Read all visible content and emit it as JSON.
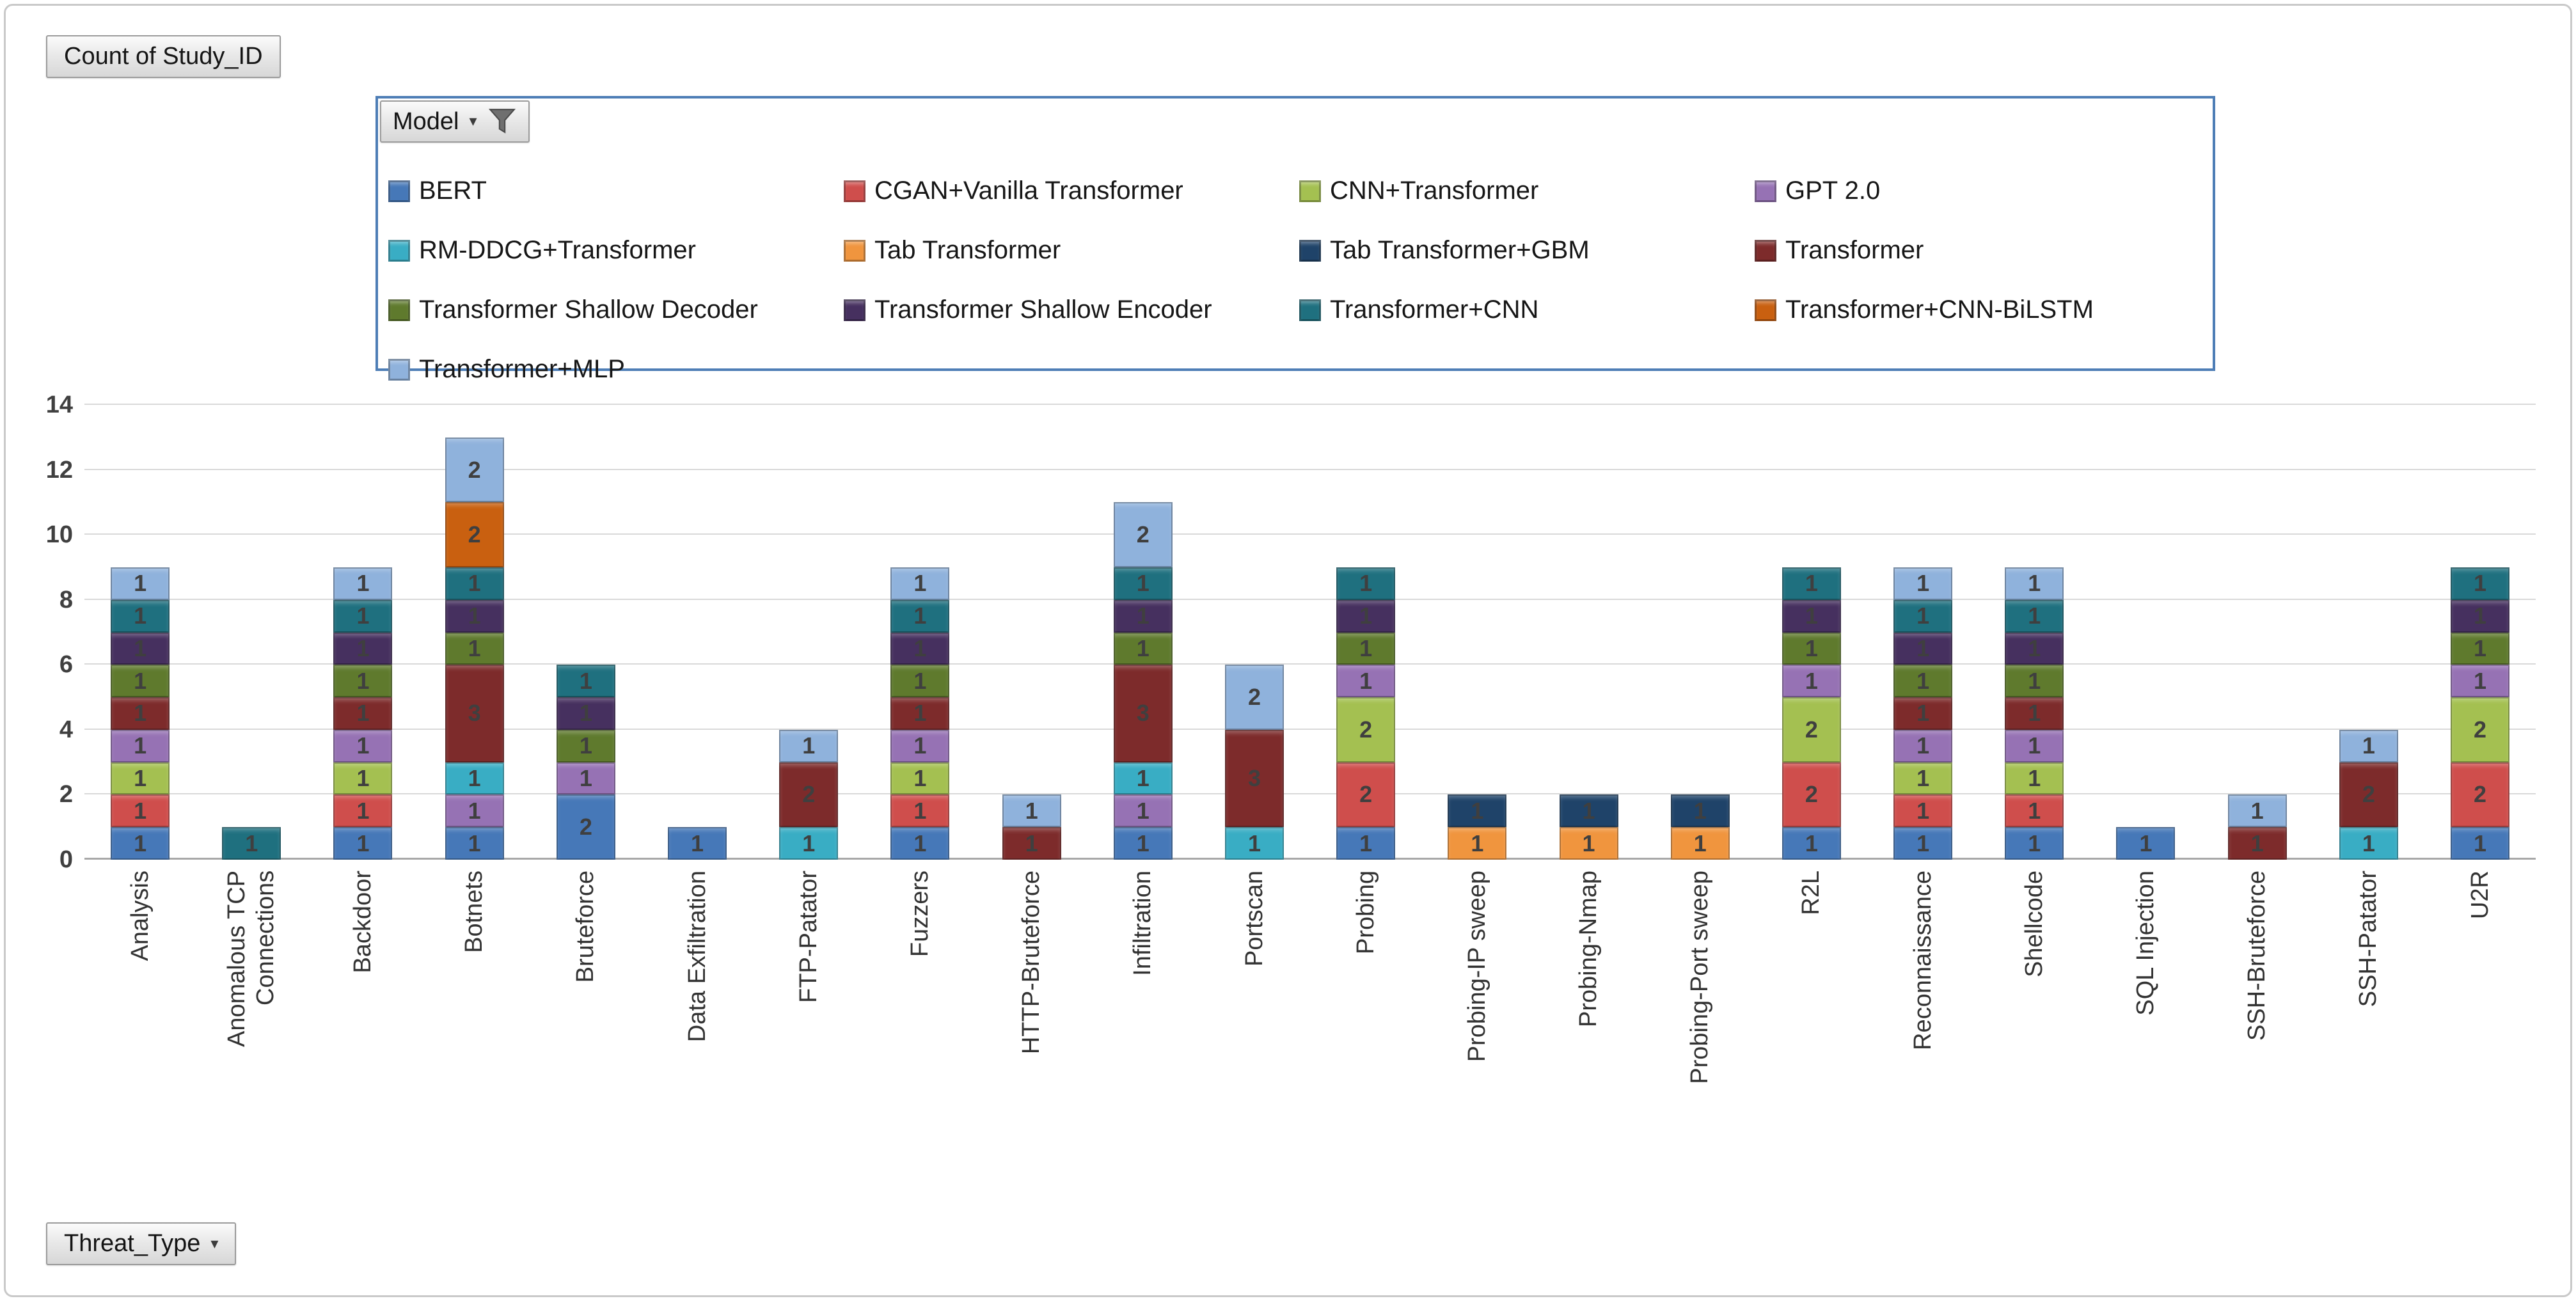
{
  "pivot": {
    "value_button": "Count of Study_ID",
    "axis_button": "Threat_Type",
    "legend_button": "Model"
  },
  "colors": {
    "legend_border": "#4E7EB6",
    "gridline": "#D9D9D9",
    "axis_line": "#A8A8A8",
    "tick_text": "#404040",
    "segment_label": "#3F3F3F"
  },
  "chart_data": {
    "type": "bar",
    "stacked": true,
    "title": "Count of Study_ID",
    "xlabel": "Threat_Type",
    "ylabel": "",
    "ylim": [
      0,
      14
    ],
    "yticks": [
      0,
      2,
      4,
      6,
      8,
      10,
      12,
      14
    ],
    "grid": true,
    "legend_title": "Model",
    "legend_position": "top",
    "legend_order": [
      "BERT",
      "CGAN+Vanilla Transformer",
      "CNN+Transformer",
      "GPT 2.0",
      "RM-DDCG+Transformer",
      "Tab Transformer",
      "Tab Transformer+GBM",
      "Transformer",
      "Transformer Shallow Decoder",
      "Transformer Shallow Encoder",
      "Transformer+CNN",
      "Transformer+CNN-BiLSTM",
      "Transformer+MLP"
    ],
    "series_colors": {
      "BERT": "#4678B8",
      "CGAN+Vanilla Transformer": "#CF4E4C",
      "CNN+Transformer": "#A4C051",
      "GPT 2.0": "#9672B4",
      "RM-DDCG+Transformer": "#39ADC4",
      "Tab Transformer": "#F0953E",
      "Tab Transformer+GBM": "#1F4369",
      "Transformer": "#7D2B2B",
      "Transformer Shallow Decoder": "#5F7A2D",
      "Transformer Shallow Encoder": "#46305F",
      "Transformer+CNN": "#1F707F",
      "Transformer+CNN-BiLSTM": "#C96010",
      "Transformer+MLP": "#8FB2DC"
    },
    "categories": [
      "Analysis",
      "Anomalous TCP Connections",
      "Backdoor",
      "Botnets",
      "Bruteforce",
      "Data Exfiltration",
      "FTP-Patator",
      "Fuzzers",
      "HTTP-Bruteforce",
      "Infiltration",
      "Portscan",
      "Probing",
      "Probing-IP sweep",
      "Probing-Nmap",
      "Probing-Port sweep",
      "R2L",
      "Reconnaissance",
      "Shellcode",
      "SQL Injection",
      "SSH-Bruteforce",
      "SSH-Patator",
      "U2R"
    ],
    "stacks": [
      [
        {
          "model": "BERT",
          "value": 1
        },
        {
          "model": "CGAN+Vanilla Transformer",
          "value": 1
        },
        {
          "model": "CNN+Transformer",
          "value": 1
        },
        {
          "model": "GPT 2.0",
          "value": 1
        },
        {
          "model": "Transformer",
          "value": 1
        },
        {
          "model": "Transformer Shallow Decoder",
          "value": 1
        },
        {
          "model": "Transformer Shallow Encoder",
          "value": 1
        },
        {
          "model": "Transformer+CNN",
          "value": 1
        },
        {
          "model": "Transformer+MLP",
          "value": 1
        }
      ],
      [
        {
          "model": "Transformer+CNN",
          "value": 1
        }
      ],
      [
        {
          "model": "BERT",
          "value": 1
        },
        {
          "model": "CGAN+Vanilla Transformer",
          "value": 1
        },
        {
          "model": "CNN+Transformer",
          "value": 1
        },
        {
          "model": "GPT 2.0",
          "value": 1
        },
        {
          "model": "Transformer",
          "value": 1
        },
        {
          "model": "Transformer Shallow Decoder",
          "value": 1
        },
        {
          "model": "Transformer Shallow Encoder",
          "value": 1
        },
        {
          "model": "Transformer+CNN",
          "value": 1
        },
        {
          "model": "Transformer+MLP",
          "value": 1
        }
      ],
      [
        {
          "model": "BERT",
          "value": 1
        },
        {
          "model": "GPT 2.0",
          "value": 1
        },
        {
          "model": "RM-DDCG+Transformer",
          "value": 1
        },
        {
          "model": "Transformer",
          "value": 3
        },
        {
          "model": "Transformer Shallow Decoder",
          "value": 1
        },
        {
          "model": "Transformer Shallow Encoder",
          "value": 1
        },
        {
          "model": "Transformer+CNN",
          "value": 1
        },
        {
          "model": "Transformer+CNN-BiLSTM",
          "value": 2
        },
        {
          "model": "Transformer+MLP",
          "value": 2
        }
      ],
      [
        {
          "model": "BERT",
          "value": 2
        },
        {
          "model": "GPT 2.0",
          "value": 1
        },
        {
          "model": "Transformer Shallow Decoder",
          "value": 1
        },
        {
          "model": "Transformer Shallow Encoder",
          "value": 1
        },
        {
          "model": "Transformer+CNN",
          "value": 1
        }
      ],
      [
        {
          "model": "BERT",
          "value": 1
        }
      ],
      [
        {
          "model": "RM-DDCG+Transformer",
          "value": 1
        },
        {
          "model": "Transformer",
          "value": 2
        },
        {
          "model": "Transformer+MLP",
          "value": 1
        }
      ],
      [
        {
          "model": "BERT",
          "value": 1
        },
        {
          "model": "CGAN+Vanilla Transformer",
          "value": 1
        },
        {
          "model": "CNN+Transformer",
          "value": 1
        },
        {
          "model": "GPT 2.0",
          "value": 1
        },
        {
          "model": "Transformer",
          "value": 1
        },
        {
          "model": "Transformer Shallow Decoder",
          "value": 1
        },
        {
          "model": "Transformer Shallow Encoder",
          "value": 1
        },
        {
          "model": "Transformer+CNN",
          "value": 1
        },
        {
          "model": "Transformer+MLP",
          "value": 1
        }
      ],
      [
        {
          "model": "Transformer",
          "value": 1
        },
        {
          "model": "Transformer+MLP",
          "value": 1
        }
      ],
      [
        {
          "model": "BERT",
          "value": 1
        },
        {
          "model": "GPT 2.0",
          "value": 1
        },
        {
          "model": "RM-DDCG+Transformer",
          "value": 1
        },
        {
          "model": "Transformer",
          "value": 3
        },
        {
          "model": "Transformer Shallow Decoder",
          "value": 1
        },
        {
          "model": "Transformer Shallow Encoder",
          "value": 1
        },
        {
          "model": "Transformer+CNN",
          "value": 1
        },
        {
          "model": "Transformer+MLP",
          "value": 2
        }
      ],
      [
        {
          "model": "RM-DDCG+Transformer",
          "value": 1
        },
        {
          "model": "Transformer",
          "value": 3
        },
        {
          "model": "Transformer+MLP",
          "value": 2
        }
      ],
      [
        {
          "model": "BERT",
          "value": 1
        },
        {
          "model": "CGAN+Vanilla Transformer",
          "value": 2
        },
        {
          "model": "CNN+Transformer",
          "value": 2
        },
        {
          "model": "GPT 2.0",
          "value": 1
        },
        {
          "model": "Transformer Shallow Decoder",
          "value": 1
        },
        {
          "model": "Transformer Shallow Encoder",
          "value": 1
        },
        {
          "model": "Transformer+CNN",
          "value": 1
        }
      ],
      [
        {
          "model": "Tab Transformer",
          "value": 1
        },
        {
          "model": "Tab Transformer+GBM",
          "value": 1
        }
      ],
      [
        {
          "model": "Tab Transformer",
          "value": 1
        },
        {
          "model": "Tab Transformer+GBM",
          "value": 1
        }
      ],
      [
        {
          "model": "Tab Transformer",
          "value": 1
        },
        {
          "model": "Tab Transformer+GBM",
          "value": 1
        }
      ],
      [
        {
          "model": "BERT",
          "value": 1
        },
        {
          "model": "CGAN+Vanilla Transformer",
          "value": 2
        },
        {
          "model": "CNN+Transformer",
          "value": 2
        },
        {
          "model": "GPT 2.0",
          "value": 1
        },
        {
          "model": "Transformer Shallow Decoder",
          "value": 1
        },
        {
          "model": "Transformer Shallow Encoder",
          "value": 1
        },
        {
          "model": "Transformer+CNN",
          "value": 1
        }
      ],
      [
        {
          "model": "BERT",
          "value": 1
        },
        {
          "model": "CGAN+Vanilla Transformer",
          "value": 1
        },
        {
          "model": "CNN+Transformer",
          "value": 1
        },
        {
          "model": "GPT 2.0",
          "value": 1
        },
        {
          "model": "Transformer",
          "value": 1
        },
        {
          "model": "Transformer Shallow Decoder",
          "value": 1
        },
        {
          "model": "Transformer Shallow Encoder",
          "value": 1
        },
        {
          "model": "Transformer+CNN",
          "value": 1
        },
        {
          "model": "Transformer+MLP",
          "value": 1
        }
      ],
      [
        {
          "model": "BERT",
          "value": 1
        },
        {
          "model": "CGAN+Vanilla Transformer",
          "value": 1
        },
        {
          "model": "CNN+Transformer",
          "value": 1
        },
        {
          "model": "GPT 2.0",
          "value": 1
        },
        {
          "model": "Transformer",
          "value": 1
        },
        {
          "model": "Transformer Shallow Decoder",
          "value": 1
        },
        {
          "model": "Transformer Shallow Encoder",
          "value": 1
        },
        {
          "model": "Transformer+CNN",
          "value": 1
        },
        {
          "model": "Transformer+MLP",
          "value": 1
        }
      ],
      [
        {
          "model": "BERT",
          "value": 1
        }
      ],
      [
        {
          "model": "Transformer",
          "value": 1
        },
        {
          "model": "Transformer+MLP",
          "value": 1
        }
      ],
      [
        {
          "model": "RM-DDCG+Transformer",
          "value": 1
        },
        {
          "model": "Transformer",
          "value": 2
        },
        {
          "model": "Transformer+MLP",
          "value": 1
        }
      ],
      [
        {
          "model": "BERT",
          "value": 1
        },
        {
          "model": "CGAN+Vanilla Transformer",
          "value": 2
        },
        {
          "model": "CNN+Transformer",
          "value": 2
        },
        {
          "model": "GPT 2.0",
          "value": 1
        },
        {
          "model": "Transformer Shallow Decoder",
          "value": 1
        },
        {
          "model": "Transformer Shallow Encoder",
          "value": 1
        },
        {
          "model": "Transformer+CNN",
          "value": 1
        }
      ]
    ]
  }
}
